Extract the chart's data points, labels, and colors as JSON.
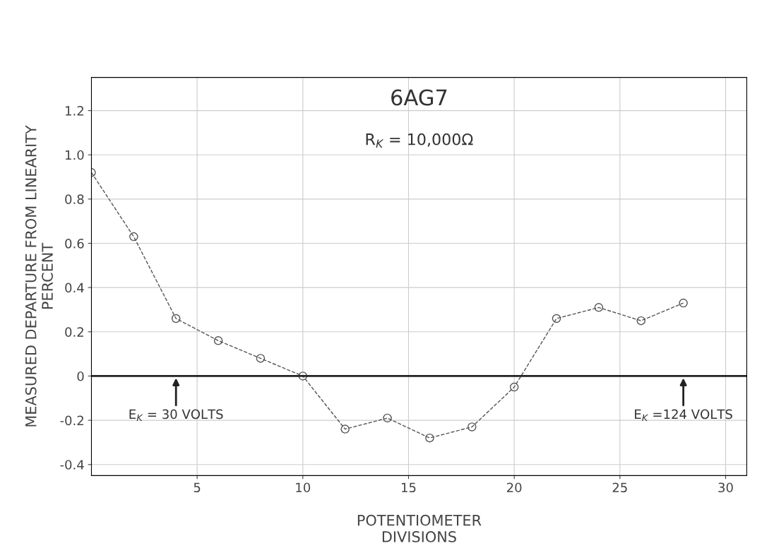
{
  "chart_data": {
    "type": "line",
    "title": "6AG7",
    "subtitle": "R$_{K}$ = 10,000Ω",
    "xlabel": "POTENTIOMETER\nDIVISIONS",
    "ylabel": "MEASURED DEPARTURE FROM LINEARITY\nPERCENT",
    "x": [
      0,
      2,
      4,
      6,
      8,
      10,
      12,
      14,
      16,
      18,
      20,
      22,
      24,
      26,
      28
    ],
    "series": [
      {
        "color": "#555555",
        "values": [
          0.92,
          0.63,
          0.26,
          0.16,
          0.08,
          0,
          -0.24,
          -0.19,
          -0.28,
          -0.23,
          -0.05,
          0.26,
          0.31,
          0.25,
          0.33
        ]
      }
    ],
    "xlim": [
      0,
      31
    ],
    "xticks": [
      5,
      10,
      15,
      20,
      25,
      30
    ],
    "ylim": [
      -0.45,
      1.35
    ],
    "yticks": [
      -0.4,
      -0.2,
      0,
      0.2,
      0.4,
      0.6,
      0.8,
      {
        "value": 1,
        "label": "1.0"
      },
      1.2
    ],
    "grid": true,
    "marker": "circle",
    "line_style": "dashed",
    "ref_lines": [
      {
        "axis": "y",
        "value": 0,
        "color": "#222222"
      }
    ],
    "annotations": [
      {
        "text": "E$_{K}$ = 30 VOLTS",
        "x": 4,
        "y": 0
      },
      {
        "text": "E$_{K}$ =124 VOLTS",
        "x": 28,
        "y": 0
      }
    ]
  }
}
